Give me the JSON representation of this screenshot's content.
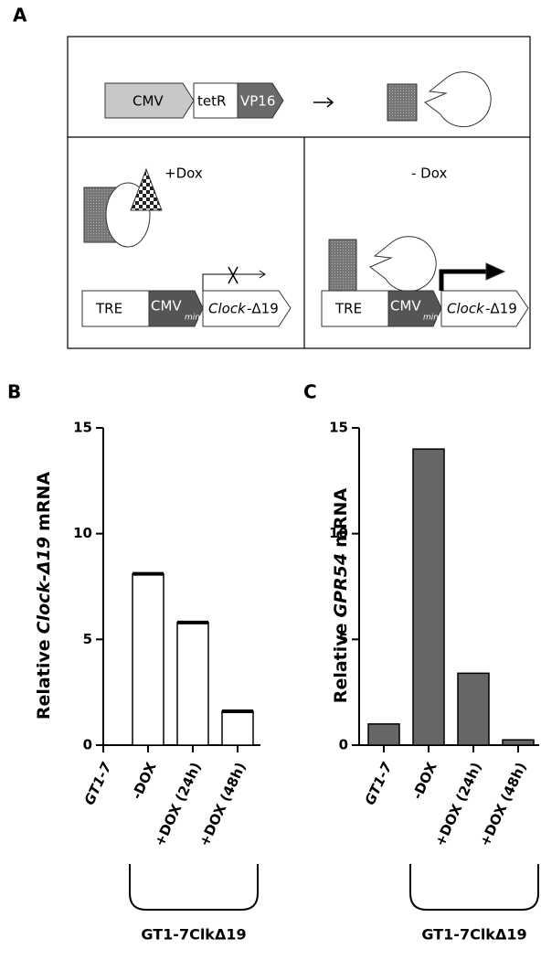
{
  "panel_labels": [
    "A",
    "B",
    "C"
  ],
  "diagram": {
    "top": {
      "promoter": "CMV",
      "gene1": "tetR",
      "gene2": "VP16"
    },
    "left": {
      "condition": "+Dox",
      "promoter": "TRE",
      "minimal": "CMV",
      "minimal_sub": "min",
      "gene": "Clock",
      "gene_suffix": "-Δ19"
    },
    "right": {
      "condition": "- Dox",
      "promoter": "TRE",
      "minimal": "CMV",
      "minimal_sub": "min",
      "gene": "Clock",
      "gene_suffix": "-Δ19"
    }
  },
  "chart_data": [
    {
      "type": "bar",
      "ylabel_parts": [
        "Relative",
        "Clock-Δ19",
        "mRNA"
      ],
      "categories": [
        "GT1-7",
        "-DOX",
        "+DOX (24h)",
        "+DOX (48h)"
      ],
      "values": [
        0,
        8.1,
        5.8,
        1.6
      ],
      "color": "#ffffff",
      "edge_color": "#000000",
      "ylim": [
        0,
        15
      ],
      "yticks": [
        0,
        5,
        10,
        15
      ],
      "group_label": "GT1-7ClkΔ19"
    },
    {
      "type": "bar",
      "ylabel_parts": [
        "Relative",
        "GPR54",
        "mRNA"
      ],
      "categories": [
        "GT1-7",
        "-DOX",
        "+DOX (24h)",
        "+DOX (48h)"
      ],
      "values": [
        1,
        14,
        3.4,
        0.25
      ],
      "color": "#666666",
      "edge_color": "#000000",
      "ylim": [
        0,
        15
      ],
      "yticks": [
        0,
        5,
        10,
        15
      ],
      "group_label": "GT1-7ClkΔ19"
    }
  ]
}
